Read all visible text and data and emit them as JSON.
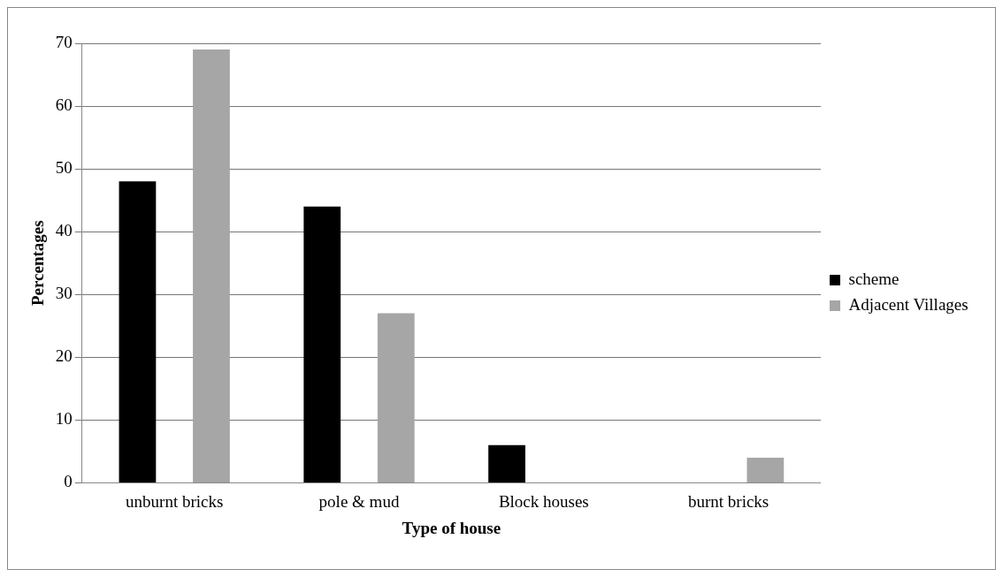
{
  "chart_data": {
    "type": "bar",
    "xlabel": "Type of house",
    "ylabel": "Percentages",
    "categories": [
      "unburnt bricks",
      "pole & mud",
      "Block houses",
      "burnt bricks"
    ],
    "series": [
      {
        "name": "scheme",
        "color": "#000000",
        "values": [
          48,
          44,
          6,
          0
        ]
      },
      {
        "name": "Adjacent Villages",
        "color": "#a6a6a6",
        "values": [
          69,
          27,
          0,
          4
        ]
      }
    ],
    "ylim": [
      0,
      70
    ],
    "yticks": [
      0,
      10,
      20,
      30,
      40,
      50,
      60,
      70
    ],
    "grid": "y",
    "legend": "right"
  }
}
